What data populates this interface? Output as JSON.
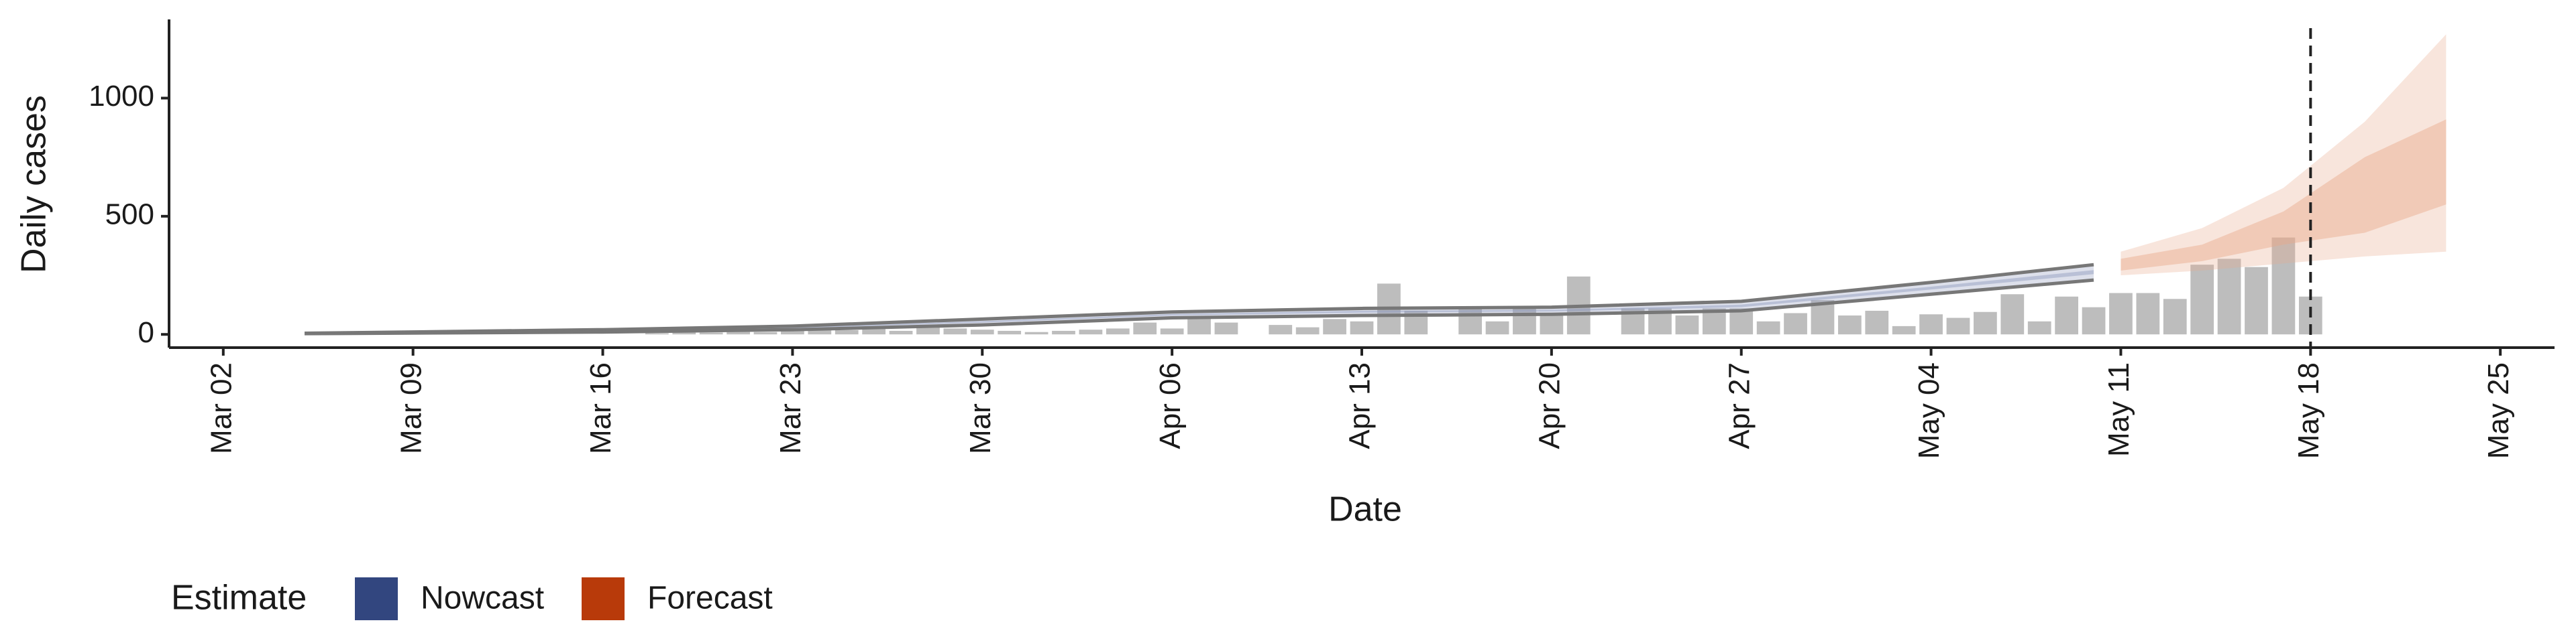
{
  "chart_data": {
    "type": "bar",
    "x_label": "Date",
    "y_label": "Daily cases",
    "xlim": [
      "02-29",
      "05-27"
    ],
    "xticks": [
      {
        "value": "03-02",
        "label": "Mar 02"
      },
      {
        "value": "03-09",
        "label": "Mar 09"
      },
      {
        "value": "03-16",
        "label": "Mar 16"
      },
      {
        "value": "03-23",
        "label": "Mar 23"
      },
      {
        "value": "03-30",
        "label": "Mar 30"
      },
      {
        "value": "04-06",
        "label": "Apr 06"
      },
      {
        "value": "04-13",
        "label": "Apr 13"
      },
      {
        "value": "04-20",
        "label": "Apr 20"
      },
      {
        "value": "04-27",
        "label": "Apr 27"
      },
      {
        "value": "05-04",
        "label": "May 04"
      },
      {
        "value": "05-11",
        "label": "May 11"
      },
      {
        "value": "05-18",
        "label": "May 18"
      },
      {
        "value": "05-25",
        "label": "May 25"
      }
    ],
    "ylim": [
      -56,
      1333
    ],
    "yticks": [
      0,
      500,
      1000
    ],
    "bar_color": "#bdbdbd",
    "x": [
      "03-18",
      "03-19",
      "03-20",
      "03-21",
      "03-22",
      "03-23",
      "03-24",
      "03-25",
      "03-26",
      "03-27",
      "03-28",
      "03-29",
      "03-30",
      "03-31",
      "04-01",
      "04-02",
      "04-03",
      "04-04",
      "04-05",
      "04-06",
      "04-07",
      "04-08",
      "04-10",
      "04-11",
      "04-12",
      "04-13",
      "04-14",
      "04-15",
      "04-17",
      "04-18",
      "04-19",
      "04-20",
      "04-21",
      "04-23",
      "04-24",
      "04-25",
      "04-26",
      "04-27",
      "04-28",
      "04-29",
      "04-30",
      "05-01",
      "05-02",
      "05-03",
      "05-04",
      "05-05",
      "05-06",
      "05-07",
      "05-08",
      "05-09",
      "05-10",
      "05-11",
      "05-12",
      "05-13",
      "05-14",
      "05-15",
      "05-16",
      "05-17",
      "05-18"
    ],
    "values": [
      5,
      10,
      8,
      12,
      10,
      15,
      20,
      18,
      25,
      15,
      30,
      25,
      20,
      15,
      10,
      15,
      20,
      25,
      50,
      25,
      75,
      50,
      40,
      30,
      65,
      55,
      215,
      100,
      115,
      55,
      120,
      90,
      245,
      110,
      110,
      80,
      110,
      110,
      55,
      90,
      145,
      80,
      100,
      35,
      85,
      70,
      95,
      170,
      55,
      160,
      115,
      175,
      175,
      150,
      295,
      320,
      285,
      410,
      160
    ],
    "reference_line": "05-18",
    "legend_title": "Estimate",
    "estimates": [
      {
        "name": "Nowcast",
        "color": "#32467f",
        "band_color": "#8e99bd",
        "outline_color": "#777777",
        "x": [
          "03-05",
          "03-16",
          "03-23",
          "03-30",
          "04-06",
          "04-13",
          "04-20",
          "04-27",
          "05-04",
          "05-10"
        ],
        "lower_outer": [
          3,
          10,
          20,
          40,
          70,
          80,
          85,
          100,
          170,
          230
        ],
        "upper_outer": [
          5,
          20,
          35,
          65,
          95,
          110,
          115,
          140,
          220,
          295
        ],
        "lower_inner": [
          4,
          14,
          26,
          50,
          80,
          92,
          97,
          115,
          190,
          255
        ],
        "upper_inner": [
          4,
          17,
          30,
          56,
          86,
          100,
          104,
          126,
          202,
          272
        ]
      },
      {
        "name": "Forecast",
        "color": "#b83a0a",
        "band_color": "#e8a88a",
        "outline_color": null,
        "x": [
          "05-11",
          "05-14",
          "05-17",
          "05-20",
          "05-23"
        ],
        "lower_outer": [
          250,
          270,
          300,
          330,
          350
        ],
        "upper_outer": [
          350,
          450,
          620,
          900,
          1270
        ],
        "lower_inner": [
          270,
          310,
          380,
          430,
          550
        ],
        "upper_inner": [
          320,
          380,
          520,
          750,
          910
        ]
      }
    ]
  }
}
